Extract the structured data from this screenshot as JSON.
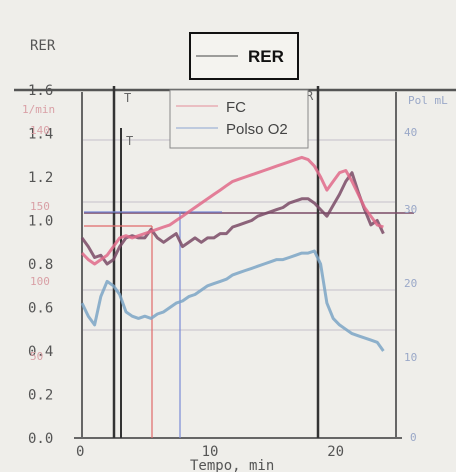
{
  "chart_data": {
    "type": "line",
    "title": "",
    "xlabel": "Tempo, min",
    "ylabel": "RER",
    "xlim": [
      0,
      25
    ],
    "ylim": [
      0,
      1.6
    ],
    "x_ticks": [
      "0",
      "10",
      "20"
    ],
    "y_ticks": [
      "0.0",
      "0.2",
      "0.4",
      "0.6",
      "0.8",
      "1.0",
      "1.2",
      "1.4",
      "1.6"
    ],
    "hr_axis_label": "1/min",
    "hr_ticks": [
      "50",
      "100",
      "150",
      "140"
    ],
    "pulse_axis_label": "Pol mL",
    "pulse_ticks": [
      "0",
      "10",
      "20",
      "30",
      "40"
    ],
    "legend_main": "RER",
    "legend_entries": [
      "FC",
      "Polso O2"
    ],
    "markers": [
      {
        "label": "T",
        "x": 2.8
      },
      {
        "label": "T",
        "x": 3.3
      },
      {
        "label": "R",
        "x": 19.2
      }
    ],
    "series": [
      {
        "name": "RER",
        "color": "#7a4a66",
        "x": [
          0,
          0.5,
          1,
          1.5,
          2,
          2.5,
          3,
          3.5,
          4,
          4.5,
          5,
          5.5,
          6,
          6.5,
          7,
          7.5,
          8,
          8.5,
          9,
          9.5,
          10,
          10.5,
          11,
          11.5,
          12,
          12.5,
          13,
          13.5,
          14,
          14.5,
          15,
          15.5,
          16,
          16.5,
          17,
          17.5,
          18,
          18.5,
          19,
          19.5,
          20,
          20.5,
          21,
          21.5,
          22,
          22.5,
          23,
          23.5,
          24
        ],
        "values": [
          0.92,
          0.88,
          0.83,
          0.84,
          0.8,
          0.82,
          0.88,
          0.92,
          0.93,
          0.92,
          0.92,
          0.96,
          0.92,
          0.9,
          0.92,
          0.94,
          0.88,
          0.9,
          0.92,
          0.9,
          0.92,
          0.92,
          0.94,
          0.94,
          0.97,
          0.98,
          0.99,
          1.0,
          1.02,
          1.03,
          1.04,
          1.05,
          1.06,
          1.08,
          1.09,
          1.1,
          1.1,
          1.08,
          1.05,
          1.02,
          1.07,
          1.12,
          1.18,
          1.22,
          1.13,
          1.05,
          0.98,
          1.0,
          0.94
        ]
      },
      {
        "name": "FC",
        "color": "#e06a8a",
        "x": [
          0,
          0.5,
          1,
          1.5,
          2,
          2.5,
          3,
          3.5,
          4,
          4.5,
          5,
          5.5,
          6,
          6.5,
          7,
          7.5,
          8,
          8.5,
          9,
          9.5,
          10,
          10.5,
          11,
          11.5,
          12,
          12.5,
          13,
          13.5,
          14,
          14.5,
          15,
          15.5,
          16,
          16.5,
          17,
          17.5,
          18,
          18.5,
          19,
          19.5,
          20,
          20.5,
          21,
          21.5,
          22,
          22.5,
          23,
          23.5,
          24
        ],
        "values": [
          0.85,
          0.82,
          0.8,
          0.82,
          0.84,
          0.88,
          0.92,
          0.93,
          0.92,
          0.93,
          0.94,
          0.95,
          0.96,
          0.97,
          0.98,
          1.0,
          1.02,
          1.04,
          1.06,
          1.08,
          1.1,
          1.12,
          1.14,
          1.16,
          1.18,
          1.19,
          1.2,
          1.21,
          1.22,
          1.23,
          1.24,
          1.25,
          1.26,
          1.27,
          1.28,
          1.29,
          1.28,
          1.25,
          1.2,
          1.14,
          1.18,
          1.22,
          1.23,
          1.18,
          1.12,
          1.06,
          1.02,
          0.98,
          0.97
        ]
      },
      {
        "name": "Polso O2",
        "color": "#7ba4c6",
        "x": [
          0,
          0.5,
          1,
          1.5,
          2,
          2.5,
          3,
          3.5,
          4,
          4.5,
          5,
          5.5,
          6,
          6.5,
          7,
          7.5,
          8,
          8.5,
          9,
          9.5,
          10,
          10.5,
          11,
          11.5,
          12,
          12.5,
          13,
          13.5,
          14,
          14.5,
          15,
          15.5,
          16,
          16.5,
          17,
          17.5,
          18,
          18.5,
          19,
          19.5,
          20,
          20.5,
          21,
          21.5,
          22,
          22.5,
          23,
          23.5,
          24
        ],
        "values": [
          0.62,
          0.56,
          0.52,
          0.65,
          0.72,
          0.7,
          0.66,
          0.58,
          0.56,
          0.55,
          0.56,
          0.55,
          0.57,
          0.58,
          0.6,
          0.62,
          0.63,
          0.65,
          0.66,
          0.68,
          0.7,
          0.71,
          0.72,
          0.73,
          0.75,
          0.76,
          0.77,
          0.78,
          0.79,
          0.8,
          0.81,
          0.82,
          0.82,
          0.83,
          0.84,
          0.85,
          0.85,
          0.86,
          0.8,
          0.62,
          0.55,
          0.52,
          0.5,
          0.48,
          0.47,
          0.46,
          0.45,
          0.44,
          0.4
        ]
      }
    ]
  }
}
